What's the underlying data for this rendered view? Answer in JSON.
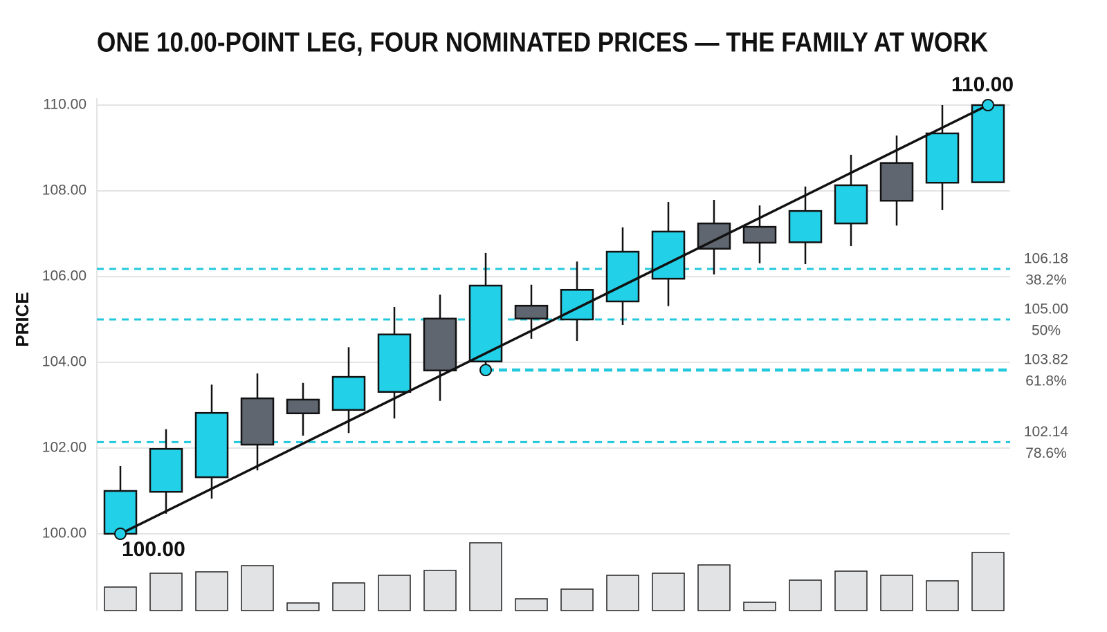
{
  "chart_data": {
    "type": "candlestick",
    "title": "ONE 10.00-POINT LEG, FOUR NOMINATED PRICES — THE FAMILY AT WORK",
    "y_label": "PRICE",
    "ylim": [
      100,
      110
    ],
    "yticks": [
      {
        "value": 100,
        "label": "100.00"
      },
      {
        "value": 102,
        "label": "102.00"
      },
      {
        "value": 104,
        "label": "104.00"
      },
      {
        "value": 106,
        "label": "106.00"
      },
      {
        "value": 108,
        "label": "108.00"
      },
      {
        "value": 110,
        "label": "110.00"
      }
    ],
    "grid": true,
    "up_color": "#22d0e8",
    "down_color": "#5f6670",
    "volume_color": "#e2e3e5",
    "level_color": "#22c8dc",
    "candles": [
      {
        "open": 100.0,
        "high": 101.58,
        "low": 100.0,
        "close": 101.0
      },
      {
        "open": 100.98,
        "high": 102.44,
        "low": 100.47,
        "close": 101.98
      },
      {
        "open": 101.32,
        "high": 103.48,
        "low": 100.82,
        "close": 102.82
      },
      {
        "open": 103.16,
        "high": 103.74,
        "low": 101.48,
        "close": 102.08
      },
      {
        "open": 103.13,
        "high": 103.52,
        "low": 102.29,
        "close": 102.81
      },
      {
        "open": 102.89,
        "high": 104.35,
        "low": 102.35,
        "close": 103.66
      },
      {
        "open": 103.31,
        "high": 105.29,
        "low": 102.69,
        "close": 104.65
      },
      {
        "open": 105.02,
        "high": 105.58,
        "low": 103.1,
        "close": 103.81
      },
      {
        "open": 104.02,
        "high": 106.55,
        "low": 103.82,
        "close": 105.79
      },
      {
        "open": 105.32,
        "high": 105.81,
        "low": 104.55,
        "close": 105.02
      },
      {
        "open": 105.0,
        "high": 106.35,
        "low": 104.5,
        "close": 105.69
      },
      {
        "open": 105.42,
        "high": 107.15,
        "low": 104.87,
        "close": 106.58
      },
      {
        "open": 105.95,
        "high": 107.74,
        "low": 105.31,
        "close": 107.05
      },
      {
        "open": 107.24,
        "high": 107.79,
        "low": 106.05,
        "close": 106.65
      },
      {
        "open": 107.16,
        "high": 107.66,
        "low": 106.31,
        "close": 106.79
      },
      {
        "open": 106.8,
        "high": 108.1,
        "low": 106.29,
        "close": 107.53
      },
      {
        "open": 107.24,
        "high": 108.84,
        "low": 106.71,
        "close": 108.13
      },
      {
        "open": 108.65,
        "high": 109.29,
        "low": 107.19,
        "close": 107.77
      },
      {
        "open": 108.19,
        "high": 110.0,
        "low": 107.55,
        "close": 109.34
      },
      {
        "open": 108.2,
        "high": 110.0,
        "low": 108.2,
        "close": 110.0
      }
    ],
    "volume": [
      34,
      54,
      56,
      65,
      11,
      40,
      51,
      58,
      98,
      17,
      31,
      51,
      54,
      66,
      12,
      44,
      57,
      51,
      43,
      84
    ],
    "levels": [
      {
        "value": 106.18,
        "label": "106.18",
        "ratio": "38.2%"
      },
      {
        "value": 105.0,
        "label": "105.00",
        "ratio": "50%"
      },
      {
        "value": 103.82,
        "label": "103.82",
        "ratio": "61.8%",
        "highlight": true,
        "from_index": 8
      },
      {
        "value": 102.14,
        "label": "102.14",
        "ratio": "78.6%"
      }
    ],
    "points": [
      {
        "index": 0,
        "value": 100.0,
        "label": "100.00"
      },
      {
        "index": 8,
        "value": 103.82
      },
      {
        "index": 19,
        "value": 110.0,
        "label": "110.00"
      }
    ]
  }
}
